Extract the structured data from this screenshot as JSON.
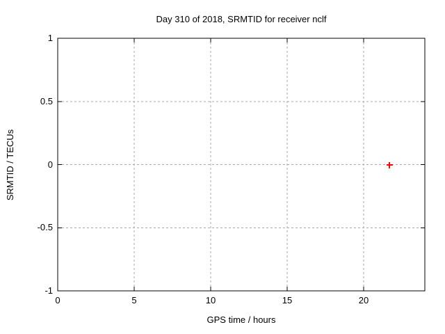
{
  "window": {
    "background": "#ffffff"
  },
  "chart_data": {
    "type": "scatter",
    "title": "Day 310 of 2018, SRMTID for receiver nclf",
    "xlabel": "GPS time / hours",
    "ylabel": "SRMTID / TECUs",
    "xlim": [
      0,
      24
    ],
    "ylim": [
      -1,
      1
    ],
    "xticks": [
      0,
      5,
      10,
      15,
      20
    ],
    "xtick_labels": [
      "0",
      "5",
      "10",
      "15",
      "20"
    ],
    "yticks": [
      -1,
      -0.5,
      0,
      0.5,
      1
    ],
    "ytick_labels": [
      "-1",
      "-0.5",
      "0",
      "0.5",
      "1"
    ],
    "grid": true,
    "legend": "none",
    "series": [
      {
        "name": "SRMTID",
        "marker": "plus",
        "color": "#ff0000",
        "points": [
          {
            "x": 21.7,
            "y": 0.0
          }
        ]
      }
    ],
    "colors": {
      "border": "#000000",
      "grid": "#a8a8a8",
      "text": "#000000"
    }
  }
}
